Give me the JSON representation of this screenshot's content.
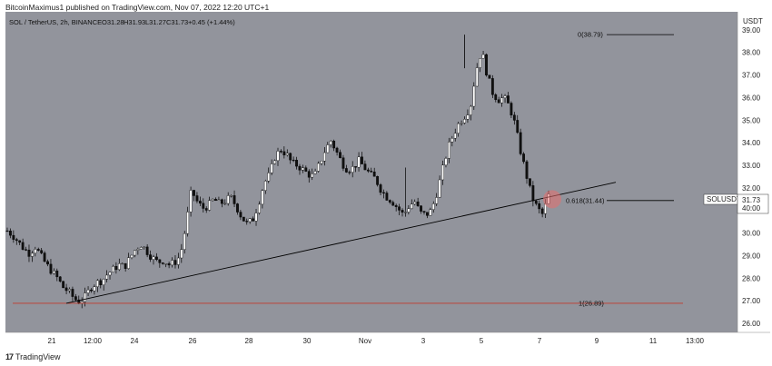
{
  "header": {
    "text": "BitcoinMaximus1 published on TradingView.com, Nov 07, 2022 12:20 UTC+1"
  },
  "footer": {
    "logo_mark": "17",
    "brand": "TradingView"
  },
  "chart_data": {
    "type": "candlestick",
    "title": "SOL / TetherUS, 2h, BINANCE",
    "ohlc": {
      "open": "O31.28",
      "high": "H31.93",
      "low": "L31.27",
      "close": "C31.73",
      "change": "+0.45 (+1.44%)"
    },
    "price_axis_label": "USDT",
    "ylim": [
      25.6,
      39.8
    ],
    "y_ticks": [
      "39.00",
      "38.00",
      "37.00",
      "36.00",
      "35.00",
      "34.00",
      "33.00",
      "32.00",
      "31.00",
      "30.00",
      "29.00",
      "28.00",
      "27.00",
      "26.00"
    ],
    "x_ticks": [
      "21",
      "12:00",
      "24",
      "26",
      "28",
      "30",
      "Nov",
      "3",
      "5",
      "7",
      "9",
      "11",
      "13:00"
    ],
    "current_price_tag": {
      "symbol": "SOLUSDT",
      "price": "31.73",
      "countdown": "40:00"
    },
    "fib_levels": [
      {
        "label": "0(38.79)",
        "value": 38.79
      },
      {
        "label": "0.618(31.44)",
        "value": 31.44
      },
      {
        "label": "1(26.89)",
        "value": 26.89
      }
    ],
    "support_line": {
      "start": [
        0,
        26.89
      ],
      "end": [
        1,
        32.25
      ],
      "color": "#000000"
    },
    "horizontal_line": {
      "value": 26.89,
      "color": "#c0392b"
    },
    "highlight": {
      "at": "last candle",
      "value": 31.5,
      "color": "#e07070"
    },
    "price_path": [
      30.1,
      29.9,
      29.6,
      29.3,
      29.1,
      29.4,
      29.0,
      28.6,
      28.3,
      28.0,
      27.6,
      27.4,
      27.1,
      26.95,
      27.2,
      27.6,
      27.8,
      27.9,
      28.2,
      28.4,
      28.6,
      28.5,
      28.9,
      29.3,
      29.5,
      29.2,
      28.9,
      28.7,
      28.8,
      28.6,
      28.7,
      29.0,
      30.3,
      31.9,
      31.4,
      31.1,
      31.2,
      31.5,
      31.3,
      31.4,
      31.6,
      31.2,
      30.7,
      30.4,
      30.6,
      31.3,
      32.2,
      32.6,
      33.4,
      33.7,
      33.5,
      33.1,
      33.0,
      32.8,
      32.6,
      32.5,
      33.1,
      33.7,
      34.1,
      33.6,
      33.1,
      32.8,
      32.9,
      33.2,
      32.9,
      32.6,
      32.4,
      31.9,
      31.6,
      31.4,
      31.1,
      30.8,
      31.2,
      31.4,
      30.9,
      30.8,
      31.0,
      31.8,
      32.8,
      33.8,
      34.4,
      34.9,
      35.2,
      35.6,
      37.2,
      38.1,
      37.0,
      36.2,
      35.9,
      36.0,
      35.6,
      34.8,
      33.6,
      32.6,
      31.6,
      31.1,
      30.8,
      31.73
    ]
  }
}
